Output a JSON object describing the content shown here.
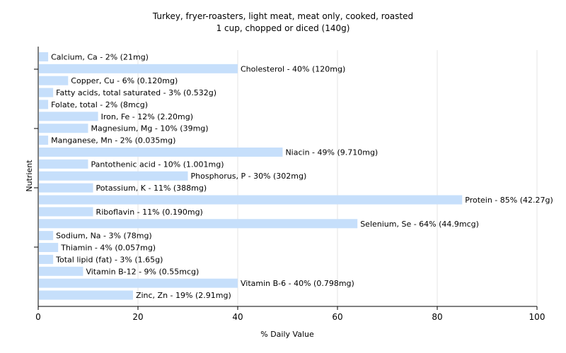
{
  "chart_data": {
    "type": "bar",
    "orientation": "horizontal",
    "title": "Turkey, fryer-roasters, light meat, meat only, cooked, roasted",
    "subtitle": "1 cup, chopped or diced (140g)",
    "xlabel": "% Daily Value",
    "ylabel": "Nutrient",
    "xlim": [
      0,
      100
    ],
    "xticks": [
      "0",
      "20",
      "40",
      "60",
      "80",
      "100"
    ],
    "grid": true,
    "bar_color": "#c6dffb",
    "grid_color": "#e4e4e4",
    "axis_color": "#000000",
    "categories": [
      "Calcium, Ca",
      "Cholesterol",
      "Copper, Cu",
      "Fatty acids, total saturated",
      "Folate, total",
      "Iron, Fe",
      "Magnesium, Mg",
      "Manganese, Mn",
      "Niacin",
      "Pantothenic acid",
      "Phosphorus, P",
      "Potassium, K",
      "Protein",
      "Riboflavin",
      "Selenium, Se",
      "Sodium, Na",
      "Thiamin",
      "Total lipid (fat)",
      "Vitamin B-12",
      "Vitamin B-6",
      "Zinc, Zn"
    ],
    "values": [
      2,
      40,
      6,
      3,
      2,
      12,
      10,
      2,
      49,
      10,
      30,
      11,
      85,
      11,
      64,
      3,
      4,
      3,
      9,
      40,
      19
    ],
    "labels": [
      "Calcium, Ca - 2% (21mg)",
      "Cholesterol - 40% (120mg)",
      "Copper, Cu - 6% (0.120mg)",
      "Fatty acids, total saturated - 3% (0.532g)",
      "Folate, total - 2% (8mcg)",
      "Iron, Fe - 12% (2.20mg)",
      "Magnesium, Mg - 10% (39mg)",
      "Manganese, Mn - 2% (0.035mg)",
      "Niacin - 49% (9.710mg)",
      "Pantothenic acid - 10% (1.001mg)",
      "Phosphorus, P - 30% (302mg)",
      "Potassium, K - 11% (388mg)",
      "Protein - 85% (42.27g)",
      "Riboflavin - 11% (0.190mg)",
      "Selenium, Se - 64% (44.9mcg)",
      "Sodium, Na - 3% (78mg)",
      "Thiamin - 4% (0.057mg)",
      "Total lipid (fat) - 3% (1.65g)",
      "Vitamin B-12 - 9% (0.55mcg)",
      "Vitamin B-6 - 40% (0.798mg)",
      "Zinc, Zn - 19% (2.91mg)"
    ]
  }
}
